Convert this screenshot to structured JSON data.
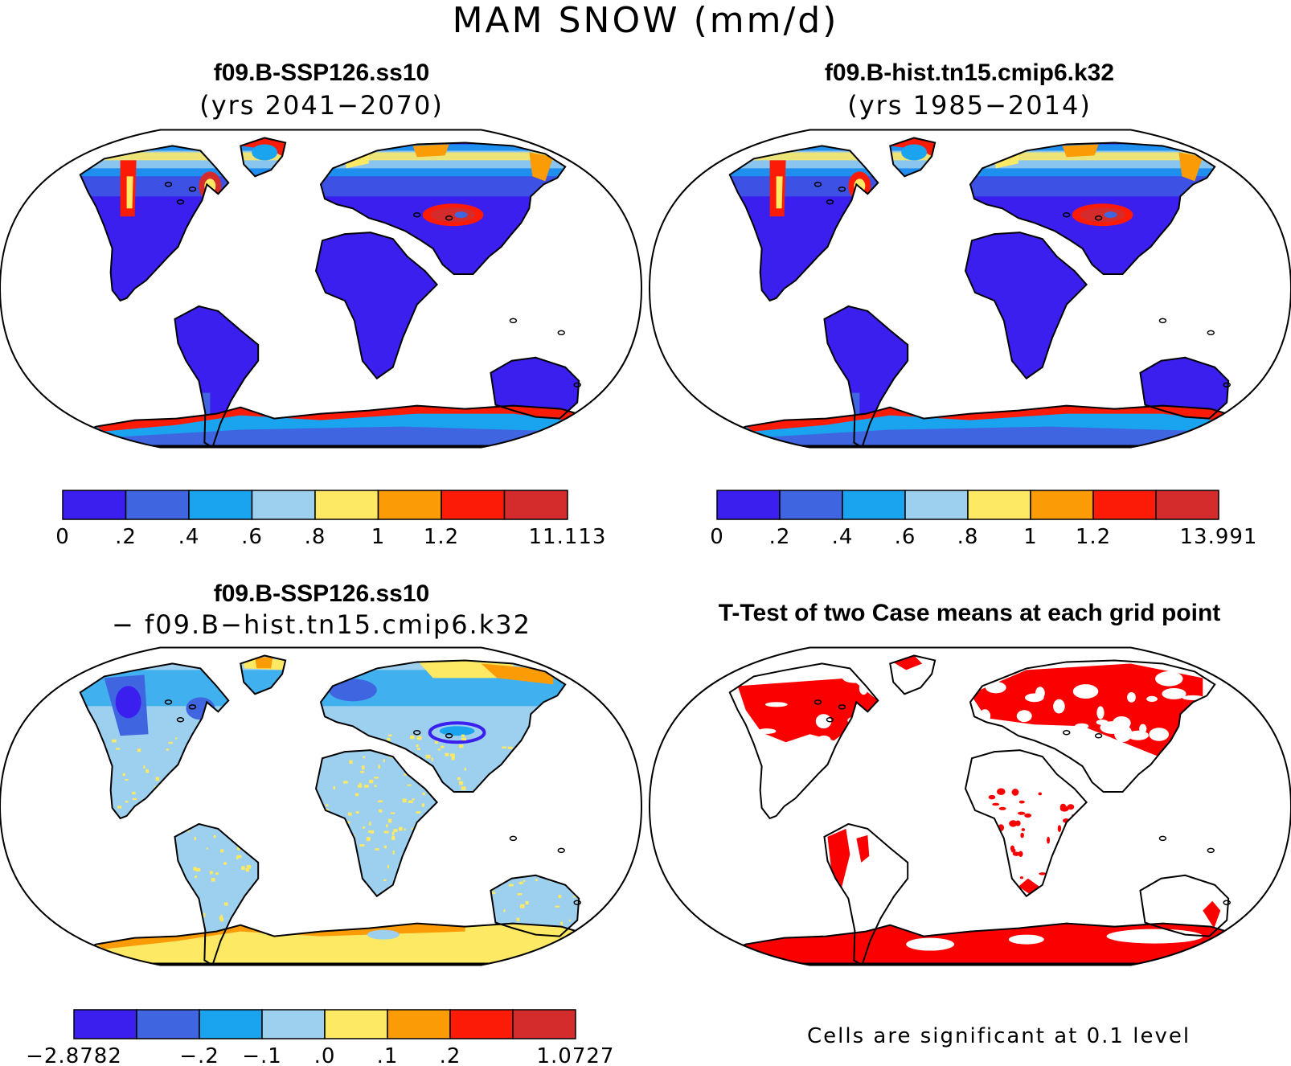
{
  "title": "MAM SNOW (mm/d)",
  "panels": [
    {
      "id": "ssp",
      "title": "f09.B-SSP126.ss10",
      "subtitle": "(yrs 2041−2070)",
      "legend": {
        "colors": [
          "#3a1fef",
          "#3f66e0",
          "#1aa3ef",
          "#9dcfef",
          "#fde964",
          "#fb9b06",
          "#fb1b07",
          "#d42c2c"
        ],
        "ticks": [
          "0",
          ".2",
          ".4",
          ".6",
          ".8",
          "1",
          "1.2",
          "",
          "11.113"
        ]
      }
    },
    {
      "id": "hist",
      "title": "f09.B-hist.tn15.cmip6.k32",
      "subtitle": "(yrs 1985−2014)",
      "legend": {
        "colors": [
          "#3a1fef",
          "#3f66e0",
          "#1aa3ef",
          "#9dcfef",
          "#fde964",
          "#fb9b06",
          "#fb1b07",
          "#d42c2c"
        ],
        "ticks": [
          "0",
          ".2",
          ".4",
          ".6",
          ".8",
          "1",
          "1.2",
          "",
          "13.991"
        ]
      }
    },
    {
      "id": "diff",
      "title": "f09.B-SSP126.ss10",
      "subtitle": "− f09.B−hist.tn15.cmip6.k32",
      "legend": {
        "colors": [
          "#3a1fef",
          "#3f66e0",
          "#1aa3ef",
          "#9dcfef",
          "#fde964",
          "#fb9b06",
          "#fb1b07",
          "#d42c2c"
        ],
        "ticks": [
          "−2.8782",
          "",
          "−.2",
          "−.1",
          ".0",
          ".1",
          ".2",
          "",
          "1.0727"
        ]
      }
    },
    {
      "id": "ttest",
      "title": "T-Test of two Case means at each grid point",
      "note": "Cells are significant at 0.1 level"
    }
  ],
  "colors": {
    "land_low": "#3a1fef",
    "land_mid": "#1aa3ef",
    "snow_high": "#fb1b07",
    "diff_neutral": "#9dcfef",
    "diff_pos": "#fde964",
    "significant": "#fb0000",
    "outline": "#000000"
  }
}
